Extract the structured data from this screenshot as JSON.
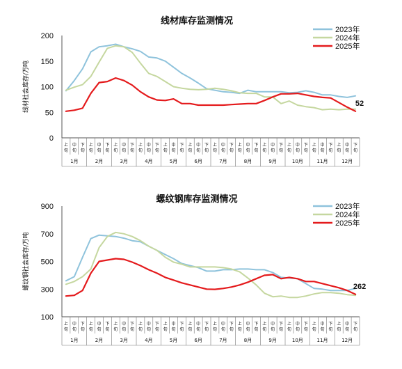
{
  "chart_data": [
    {
      "type": "line",
      "title": "线材库存监测情况",
      "ylabel": "线材社会库存/万吨",
      "ylim": [
        0,
        200
      ],
      "yticks": [
        0,
        50,
        100,
        150,
        200
      ],
      "x_sub_labels": [
        "上旬",
        "中旬",
        "下旬"
      ],
      "months": [
        "1月",
        "2月",
        "3月",
        "4月",
        "5月",
        "6月",
        "7月",
        "8月",
        "9月",
        "10月",
        "11月",
        "12月"
      ],
      "legend_position": "top-right",
      "end_label": "52",
      "series": [
        {
          "name": "2023年",
          "color": "#8fc3dc",
          "values": [
            92,
            112,
            135,
            168,
            178,
            180,
            183,
            178,
            174,
            169,
            158,
            156,
            150,
            138,
            126,
            117,
            107,
            96,
            93,
            90,
            89,
            87,
            93,
            90,
            90,
            90,
            90,
            88,
            89,
            92,
            89,
            84,
            84,
            81,
            79,
            82
          ]
        },
        {
          "name": "2024年",
          "color": "#c5d79f",
          "values": [
            93,
            99,
            104,
            120,
            148,
            175,
            180,
            178,
            167,
            146,
            126,
            120,
            110,
            100,
            97,
            95,
            94,
            95,
            97,
            95,
            92,
            88,
            87,
            87,
            80,
            80,
            67,
            72,
            64,
            61,
            59,
            55,
            56,
            55,
            56,
            56
          ]
        },
        {
          "name": "2025年",
          "color": "#e41a1c",
          "values": [
            52,
            54,
            58,
            87,
            108,
            110,
            117,
            112,
            103,
            90,
            80,
            74,
            73,
            76,
            67,
            67,
            64,
            64,
            64,
            64,
            65,
            66,
            67,
            67,
            73,
            80,
            86,
            86,
            87,
            84,
            81,
            79,
            78,
            69,
            60,
            52
          ]
        }
      ]
    },
    {
      "type": "line",
      "title": "螺纹钢库存监测情况",
      "ylabel": "螺纹钢社会库存/万吨",
      "ylim": [
        100,
        900
      ],
      "yticks": [
        100,
        300,
        500,
        700,
        900
      ],
      "x_sub_labels": [
        "上旬",
        "中旬",
        "下旬"
      ],
      "months": [
        "1月",
        "2月",
        "3月",
        "4月",
        "5月",
        "6月",
        "7月",
        "8月",
        "9月",
        "10月",
        "11月",
        "12月"
      ],
      "legend_position": "top-right",
      "end_label": "262",
      "series": [
        {
          "name": "2023年",
          "color": "#8fc3dc",
          "values": [
            360,
            390,
            530,
            665,
            690,
            685,
            680,
            668,
            650,
            642,
            610,
            580,
            550,
            520,
            485,
            470,
            455,
            430,
            430,
            440,
            440,
            445,
            445,
            440,
            440,
            420,
            385,
            380,
            375,
            340,
            305,
            300,
            290,
            290,
            290,
            305
          ]
        },
        {
          "name": "2024年",
          "color": "#c5d79f",
          "values": [
            335,
            355,
            390,
            445,
            600,
            680,
            710,
            700,
            680,
            650,
            610,
            580,
            530,
            495,
            480,
            460,
            460,
            460,
            460,
            455,
            445,
            425,
            380,
            330,
            270,
            245,
            250,
            240,
            240,
            250,
            265,
            275,
            275,
            270,
            260,
            255
          ]
        },
        {
          "name": "2025年",
          "color": "#e41a1c",
          "values": [
            250,
            255,
            290,
            415,
            500,
            510,
            520,
            515,
            495,
            470,
            440,
            415,
            385,
            365,
            345,
            330,
            315,
            300,
            298,
            305,
            315,
            330,
            350,
            375,
            400,
            405,
            375,
            385,
            375,
            355,
            355,
            340,
            325,
            310,
            290,
            262
          ]
        }
      ]
    }
  ]
}
